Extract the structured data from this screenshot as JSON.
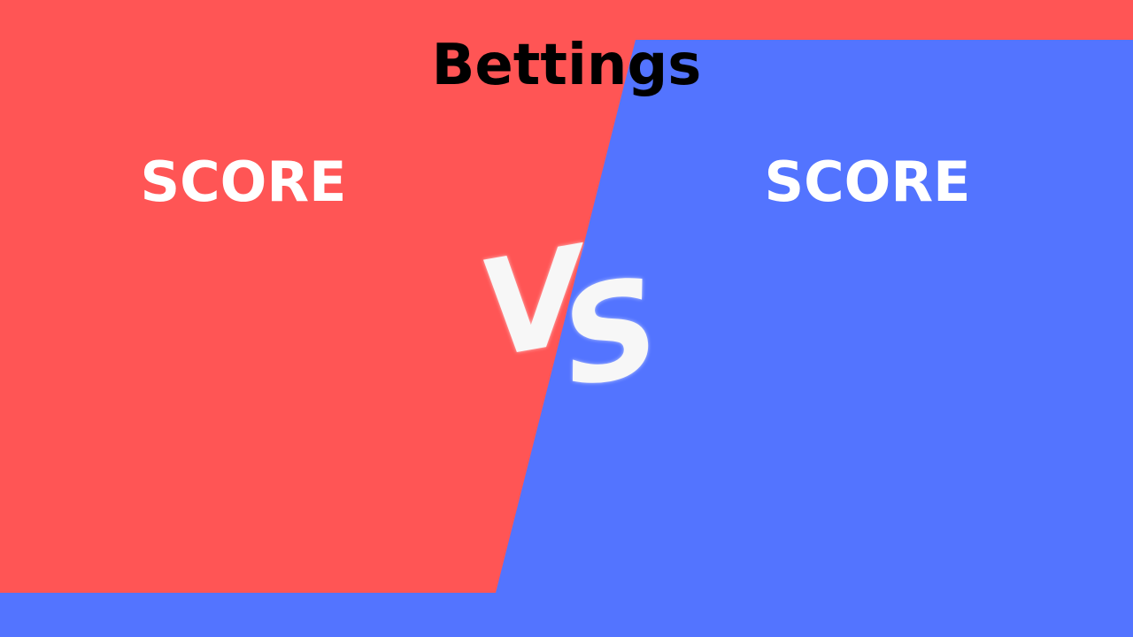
{
  "title": "Bettings",
  "left_panel": {
    "label": "SCORE",
    "color": "#FF5555"
  },
  "right_panel": {
    "label": "SCORE",
    "color": "#5374FF"
  },
  "versus": {
    "first_letter": "V",
    "second_letter": "S",
    "icon": "versus-badge"
  }
}
